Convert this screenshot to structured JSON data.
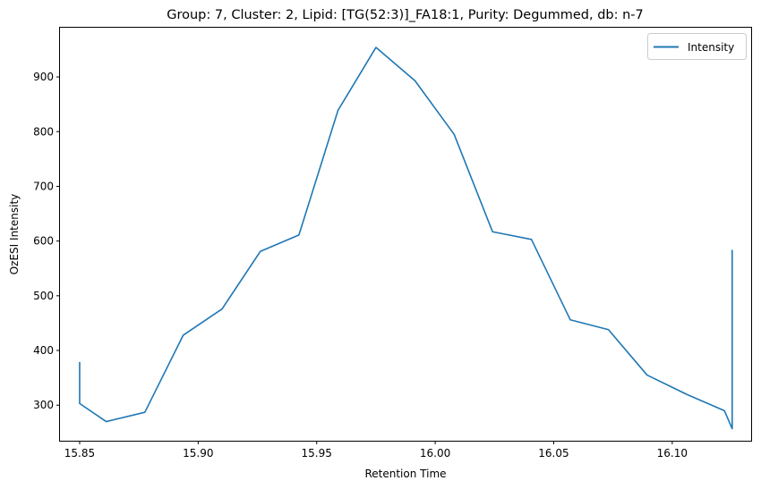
{
  "chart_data": {
    "type": "line",
    "title": "Group: 7, Cluster: 2, Lipid: [TG(52:3)]_FA18:1, Purity: Degummed, db: n-7",
    "xlabel": "Retention Time",
    "ylabel": "OzESI Intensity",
    "xlim": [
      15.8417,
      16.1333
    ],
    "ylim": [
      235,
      990
    ],
    "grid": false,
    "legend_position": "top-right",
    "xticks": [
      15.85,
      15.9,
      15.95,
      16.0,
      16.05,
      16.1
    ],
    "xtick_labels": [
      "15.85",
      "15.90",
      "15.95",
      "16.00",
      "16.05",
      "16.10"
    ],
    "yticks": [
      300,
      400,
      500,
      600,
      700,
      800,
      900
    ],
    "ytick_labels": [
      "300",
      "400",
      "500",
      "600",
      "700",
      "800",
      "900"
    ],
    "series": [
      {
        "name": "Intensity",
        "color": "#1f77b4",
        "x": [
          15.85,
          15.85,
          15.85,
          15.8612,
          15.8775,
          15.8937,
          15.9101,
          15.9262,
          15.9425,
          15.959,
          15.975,
          15.9915,
          16.008,
          16.0242,
          16.0406,
          16.057,
          16.0731,
          16.0894,
          16.106,
          16.122,
          16.1253,
          16.1253,
          16.1253,
          16.1253,
          16.1253,
          16.1253,
          16.1253,
          16.1253
        ],
        "y": [
          379,
          340,
          303,
          270,
          287,
          428,
          476,
          581,
          611,
          839,
          954,
          893,
          795,
          617,
          603,
          456,
          438,
          355,
          320,
          290,
          257,
          583,
          260,
          580,
          265,
          575,
          270,
          575
        ]
      }
    ]
  }
}
